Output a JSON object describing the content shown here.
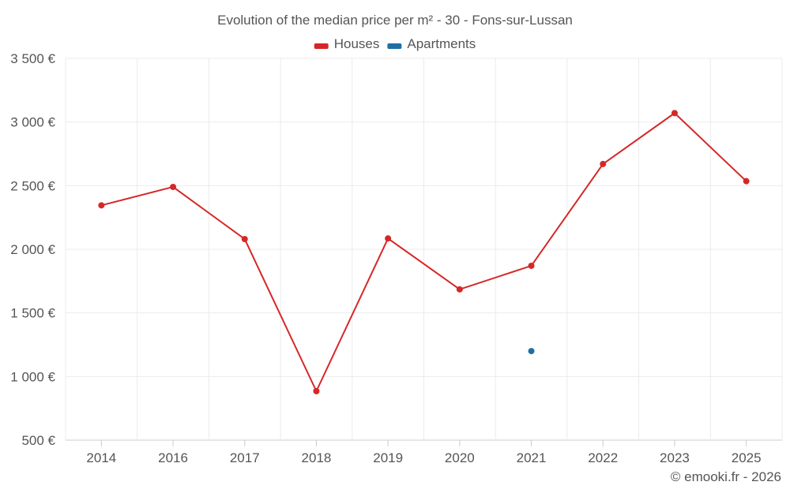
{
  "chart_data": {
    "type": "line",
    "title": "Evolution of the median price per m² - 30 - Fons-sur-Lussan",
    "categories": [
      "2014",
      "2016",
      "2017",
      "2018",
      "2019",
      "2020",
      "2021",
      "2022",
      "2023",
      "2025"
    ],
    "series": [
      {
        "name": "Houses",
        "color": "#d62728",
        "values": [
          2345,
          2490,
          2080,
          885,
          2085,
          1685,
          1870,
          2670,
          3070,
          2535
        ]
      },
      {
        "name": "Apartments",
        "color": "#1f6fa3",
        "values": [
          null,
          null,
          null,
          null,
          null,
          null,
          1200,
          null,
          null,
          null
        ]
      }
    ],
    "y_ticks": [
      "500 €",
      "1 000 €",
      "1 500 €",
      "2 000 €",
      "2 500 €",
      "3 000 €",
      "3 500 €"
    ],
    "y_tick_values": [
      500,
      1000,
      1500,
      2000,
      2500,
      3000,
      3500
    ],
    "ylim": [
      500,
      3500
    ],
    "xlabel": "",
    "ylabel": "",
    "grid": true,
    "legend_position": "top-center"
  },
  "footer": "© emooki.fr - 2026"
}
